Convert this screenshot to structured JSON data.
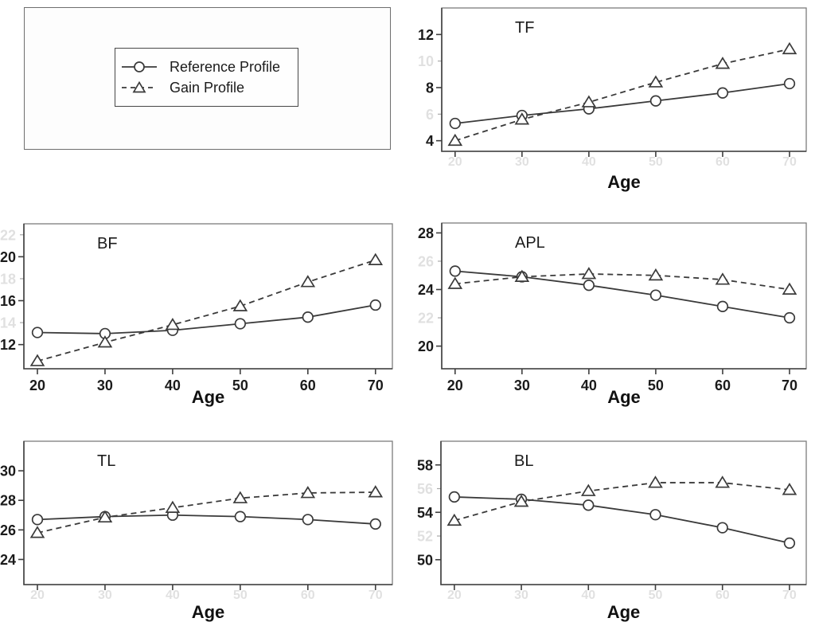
{
  "figure": {
    "background": "#ffffff",
    "description": "Five line charts (TF, BF, APL, TL, BL) of Reference vs Gain profiles across Age, plus a legend panel"
  },
  "colors": {
    "series_line": "#3a3a3a",
    "axis": "#3f3f3f",
    "box_border": "#7d7d7d",
    "text": "#1b1b1b",
    "marker_fill": "#ffffff",
    "faint_label_opacity": 0.13
  },
  "legend": {
    "items": [
      {
        "label": "Reference Profile",
        "marker": "circle",
        "line_style": "solid"
      },
      {
        "label": "Gain Profile",
        "marker": "triangle",
        "line_style": "dashed"
      }
    ]
  },
  "chart_data": [
    {
      "type": "line",
      "title": "TF",
      "xlabel": "Age",
      "x": [
        20,
        30,
        40,
        50,
        60,
        70
      ],
      "xlim": [
        18,
        72.5
      ],
      "ylim": [
        3.2,
        14.0
      ],
      "yticks": [
        4,
        8,
        12
      ],
      "yticks_faint": [
        6,
        10
      ],
      "x_labels_visible": false,
      "legend_position": "none",
      "grid": false,
      "series": [
        {
          "name": "Reference Profile",
          "marker": "circle",
          "line_style": "solid",
          "values": [
            5.3,
            5.9,
            6.4,
            7.0,
            7.6,
            8.3
          ]
        },
        {
          "name": "Gain Profile",
          "marker": "triangle",
          "line_style": "dashed",
          "values": [
            4.0,
            5.6,
            6.9,
            8.4,
            9.8,
            10.9
          ]
        }
      ]
    },
    {
      "type": "line",
      "title": "BF",
      "xlabel": "Age",
      "x": [
        20,
        30,
        40,
        50,
        60,
        70
      ],
      "xlim": [
        18,
        72.5
      ],
      "ylim": [
        9.8,
        23.0
      ],
      "yticks": [
        12,
        16,
        20
      ],
      "yticks_faint": [
        14,
        18,
        22
      ],
      "x_labels_visible": true,
      "legend_position": "none",
      "grid": false,
      "series": [
        {
          "name": "Reference Profile",
          "marker": "circle",
          "line_style": "solid",
          "values": [
            13.1,
            13.0,
            13.3,
            13.9,
            14.5,
            15.6
          ]
        },
        {
          "name": "Gain Profile",
          "marker": "triangle",
          "line_style": "dashed",
          "values": [
            10.5,
            12.2,
            13.8,
            15.5,
            17.7,
            19.7
          ]
        }
      ]
    },
    {
      "type": "line",
      "title": "APL",
      "xlabel": "Age",
      "x": [
        20,
        30,
        40,
        50,
        60,
        70
      ],
      "xlim": [
        18,
        72.5
      ],
      "ylim": [
        18.4,
        28.7
      ],
      "yticks": [
        20,
        24,
        28
      ],
      "yticks_faint": [
        22,
        26
      ],
      "x_labels_visible": true,
      "legend_position": "none",
      "grid": false,
      "series": [
        {
          "name": "Reference Profile",
          "marker": "circle",
          "line_style": "solid",
          "values": [
            25.3,
            24.9,
            24.3,
            23.6,
            22.8,
            22.0
          ]
        },
        {
          "name": "Gain Profile",
          "marker": "triangle",
          "line_style": "dashed",
          "values": [
            24.4,
            24.9,
            25.1,
            25.0,
            24.7,
            24.0
          ]
        }
      ]
    },
    {
      "type": "line",
      "title": "TL",
      "xlabel": "Age",
      "x": [
        20,
        30,
        40,
        50,
        60,
        70
      ],
      "xlim": [
        18,
        72.5
      ],
      "ylim": [
        22.3,
        32.0
      ],
      "yticks": [
        24,
        26,
        28,
        30
      ],
      "yticks_faint": [],
      "x_labels_visible": false,
      "legend_position": "none",
      "grid": false,
      "series": [
        {
          "name": "Reference Profile",
          "marker": "circle",
          "line_style": "solid",
          "values": [
            26.7,
            26.9,
            27.0,
            26.9,
            26.7,
            26.4
          ]
        },
        {
          "name": "Gain Profile",
          "marker": "triangle",
          "line_style": "dashed",
          "values": [
            25.8,
            26.85,
            27.5,
            28.15,
            28.5,
            28.55
          ]
        }
      ]
    },
    {
      "type": "line",
      "title": "BL",
      "xlabel": "Age",
      "x": [
        20,
        30,
        40,
        50,
        60,
        70
      ],
      "xlim": [
        18,
        72.5
      ],
      "ylim": [
        47.9,
        60.0
      ],
      "yticks": [
        50,
        54,
        58
      ],
      "yticks_faint": [
        52,
        56
      ],
      "x_labels_visible": false,
      "legend_position": "none",
      "grid": false,
      "series": [
        {
          "name": "Reference Profile",
          "marker": "circle",
          "line_style": "solid",
          "values": [
            55.3,
            55.1,
            54.6,
            53.8,
            52.7,
            51.4
          ]
        },
        {
          "name": "Gain Profile",
          "marker": "triangle",
          "line_style": "dashed",
          "values": [
            53.3,
            54.9,
            55.8,
            56.5,
            56.5,
            55.9
          ]
        }
      ]
    }
  ]
}
